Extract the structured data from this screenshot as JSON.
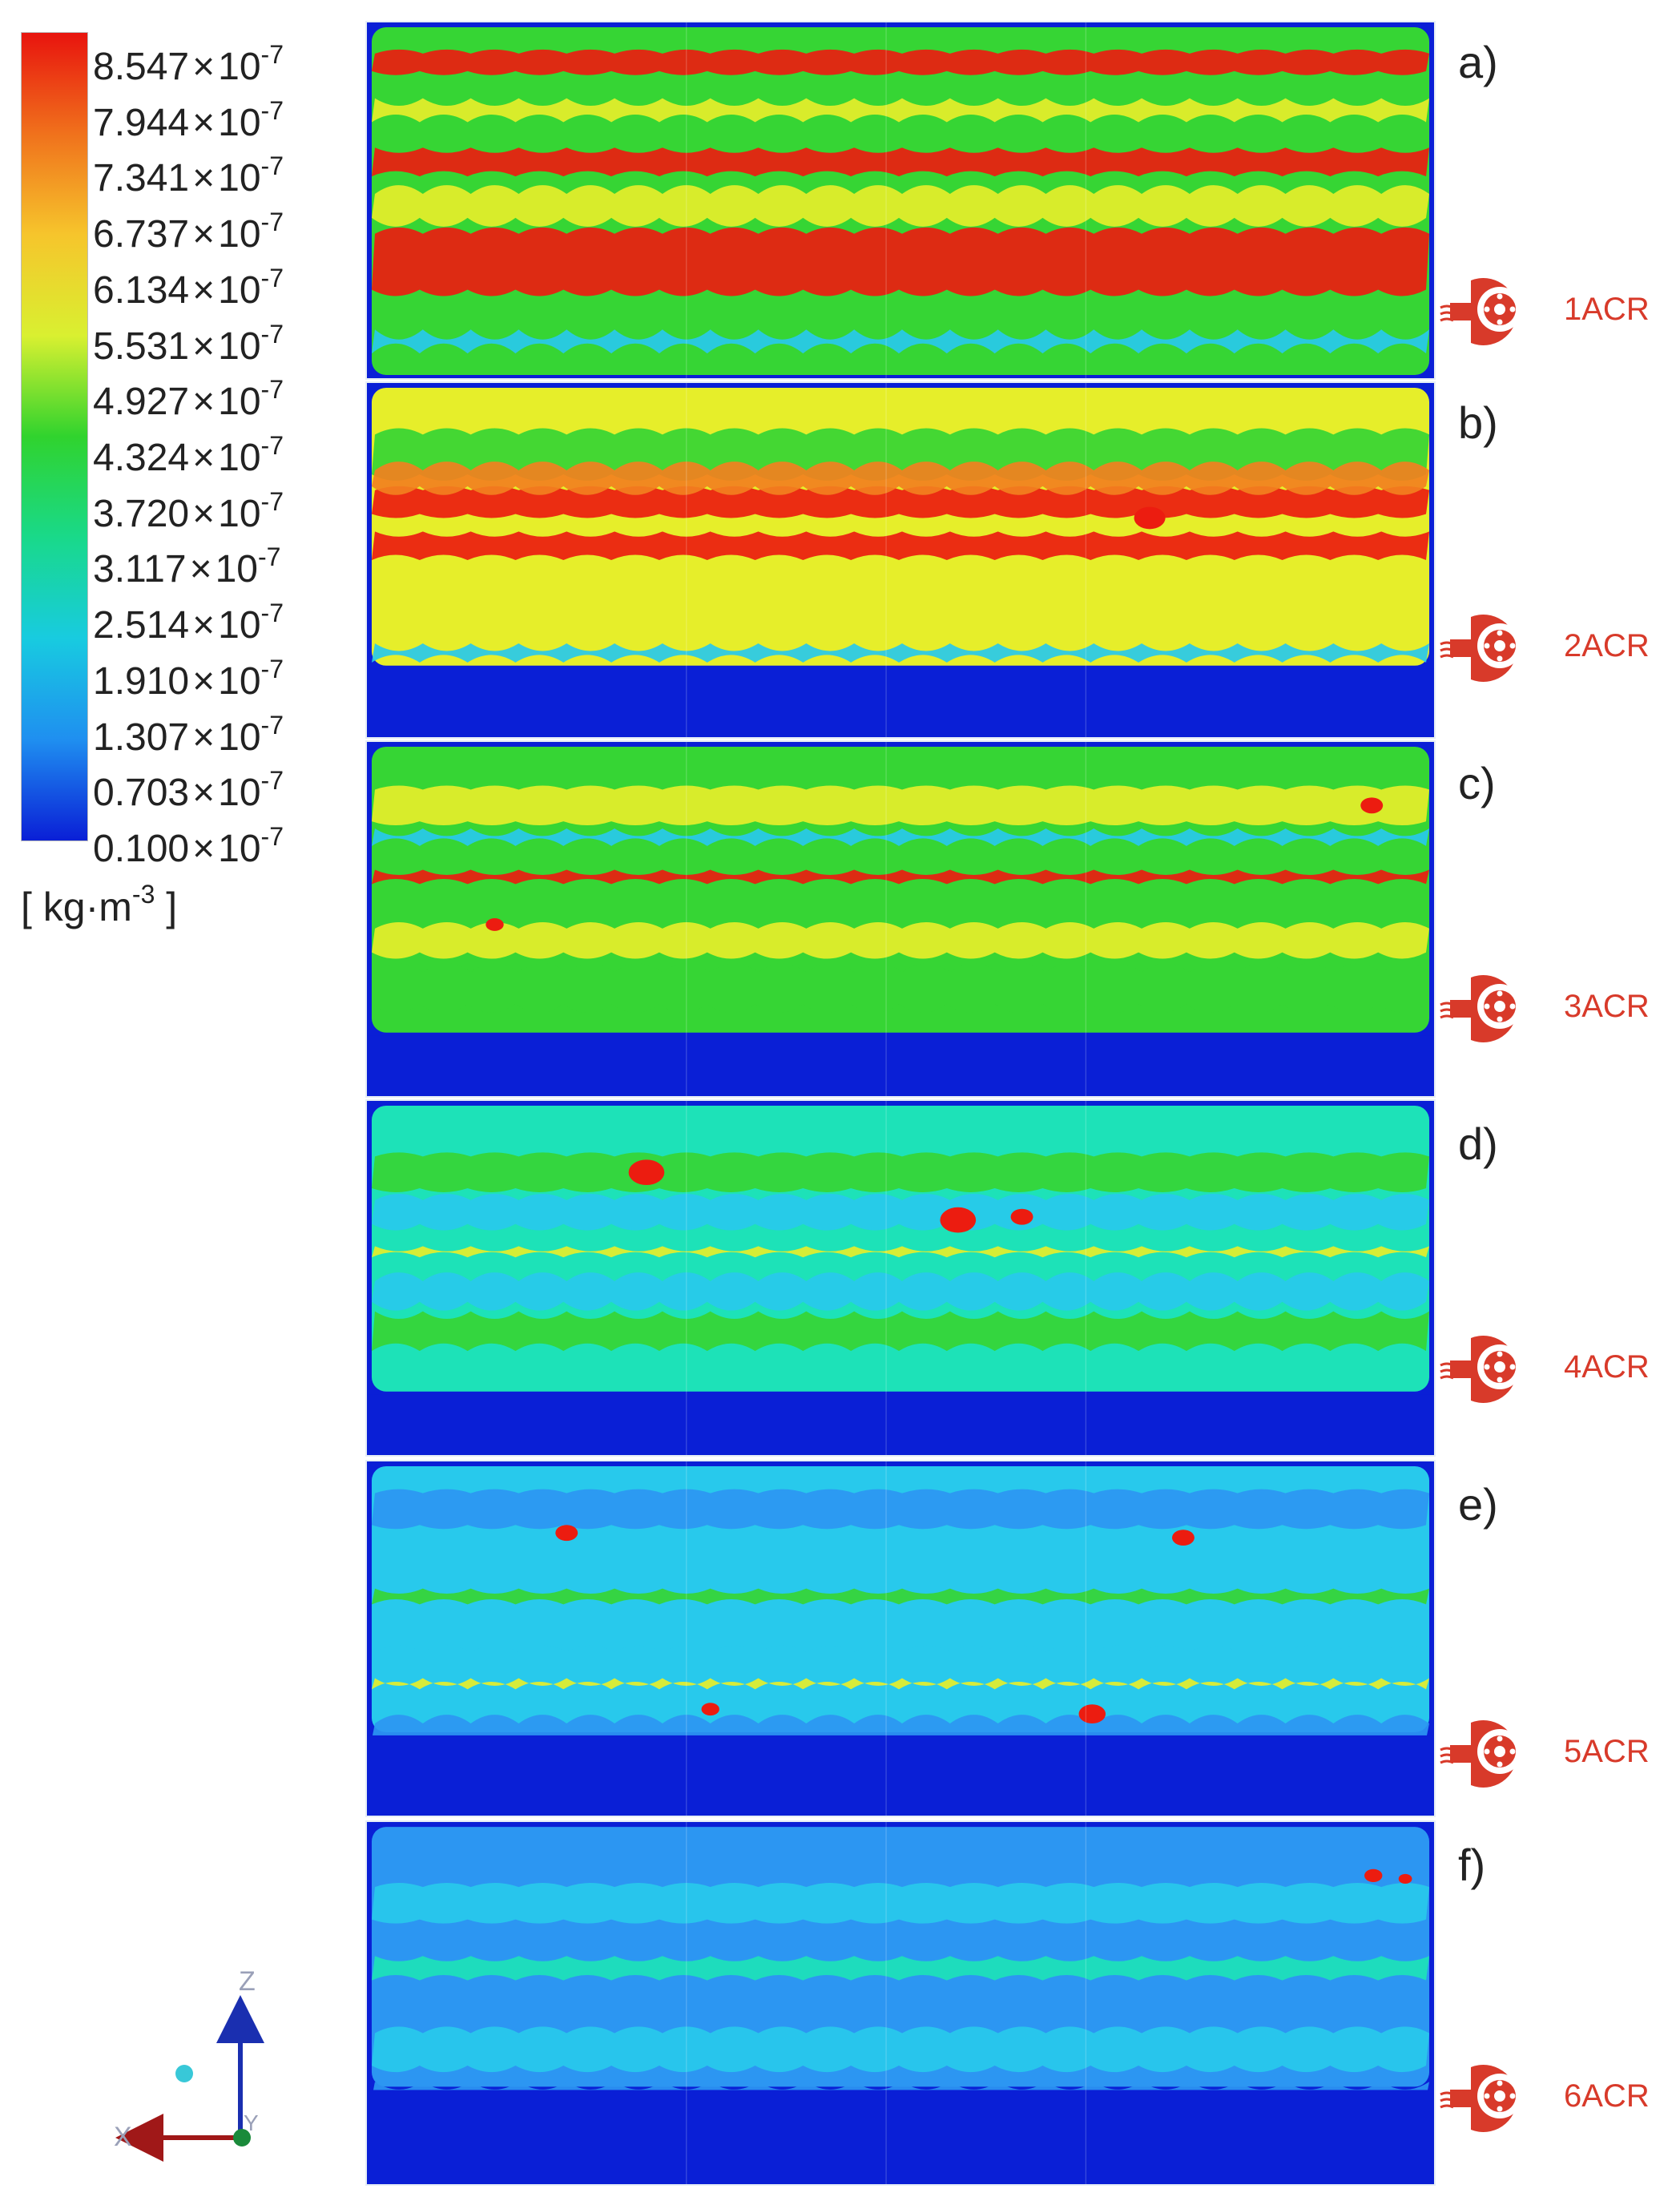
{
  "legend": {
    "gradient": [
      "#e8140e",
      "#f0711c",
      "#f6c52c",
      "#d9f030",
      "#30d32e",
      "#19d98a",
      "#18cbe0",
      "#1f8ff0",
      "#0a1fd6"
    ],
    "ticks": [
      {
        "base": "8.547",
        "times": "×",
        "power": "10",
        "exp": "-7"
      },
      {
        "base": "7.944",
        "times": "×",
        "power": "10",
        "exp": "-7"
      },
      {
        "base": "7.341",
        "times": "×",
        "power": "10",
        "exp": "-7"
      },
      {
        "base": "6.737",
        "times": "×",
        "power": "10",
        "exp": "-7"
      },
      {
        "base": "6.134",
        "times": "×",
        "power": "10",
        "exp": "-7"
      },
      {
        "base": "5.531",
        "times": "×",
        "power": "10",
        "exp": "-7"
      },
      {
        "base": "4.927",
        "times": "×",
        "power": "10",
        "exp": "-7"
      },
      {
        "base": "4.324",
        "times": "×",
        "power": "10",
        "exp": "-7"
      },
      {
        "base": "3.720",
        "times": "×",
        "power": "10",
        "exp": "-7"
      },
      {
        "base": "3.117",
        "times": "×",
        "power": "10",
        "exp": "-7"
      },
      {
        "base": "2.514",
        "times": "×",
        "power": "10",
        "exp": "-7"
      },
      {
        "base": "1.910",
        "times": "×",
        "power": "10",
        "exp": "-7"
      },
      {
        "base": "1.307",
        "times": "×",
        "power": "10",
        "exp": "-7"
      },
      {
        "base": "0.703",
        "times": "×",
        "power": "10",
        "exp": "-7"
      },
      {
        "base": "0.100",
        "times": "×",
        "power": "10",
        "exp": "-7"
      }
    ],
    "unit": {
      "prefix": "[ kg·m",
      "exp": "-3",
      "suffix": " ]"
    }
  },
  "panels": [
    {
      "letter": "a)",
      "acr": "1ACR"
    },
    {
      "letter": "b)",
      "acr": "2ACR"
    },
    {
      "letter": "c)",
      "acr": "3ACR"
    },
    {
      "letter": "d)",
      "acr": "4ACR"
    },
    {
      "letter": "e)",
      "acr": "5ACR"
    },
    {
      "letter": "f)",
      "acr": "6ACR"
    }
  ],
  "axes": {
    "z": "Z",
    "x": "X",
    "y": "Y"
  },
  "colors": {
    "fan_icon": "#d83a2a",
    "axis_z": "#1a2fb0",
    "axis_x": "#a01818",
    "axis_origin": "#1a8a3a",
    "axis_point": "#38c8d8"
  }
}
